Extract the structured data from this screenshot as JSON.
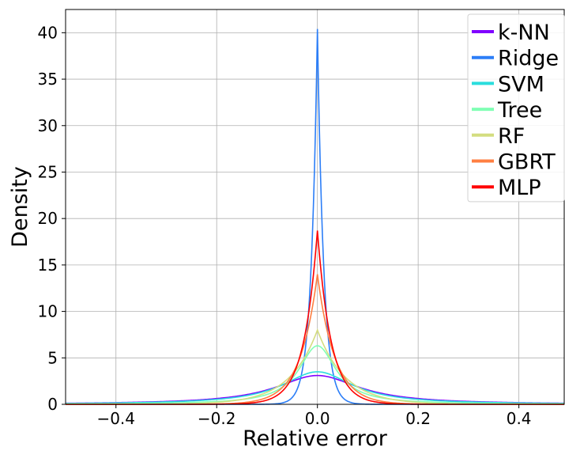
{
  "chart_data": {
    "type": "line",
    "xlabel": "Relative error",
    "ylabel": "Density",
    "xlim": [
      -0.5,
      0.49
    ],
    "ylim": [
      0,
      42.5
    ],
    "xticks": [
      -0.4,
      -0.2,
      0.0,
      0.2,
      0.4
    ],
    "xtick_labels": [
      "−0.4",
      "−0.2",
      "0.0",
      "0.2",
      "0.4"
    ],
    "yticks": [
      0,
      5,
      10,
      15,
      20,
      25,
      30,
      35,
      40
    ],
    "ytick_labels": [
      "0",
      "5",
      "10",
      "15",
      "20",
      "25",
      "30",
      "35",
      "40"
    ],
    "grid": true,
    "legend_position": "top-right",
    "series": [
      {
        "name": "k-NN",
        "color": "#8000ff",
        "peak": 3.1,
        "kind": "cauchy",
        "scale": 0.1
      },
      {
        "name": "Ridge",
        "color": "#2c7ef7",
        "peak": 40.4,
        "kind": "laplace",
        "scale": 0.0125
      },
      {
        "name": "SVM",
        "color": "#2adddd",
        "peak": 3.5,
        "kind": "cauchy",
        "scale": 0.085
      },
      {
        "name": "Tree",
        "color": "#80ffb4",
        "peak": 6.3,
        "kind": "cauchy",
        "scale": 0.045
      },
      {
        "name": "RF",
        "color": "#d4dd80",
        "peak": 8.0,
        "kind": "laplace",
        "scale": 0.055
      },
      {
        "name": "GBRT",
        "color": "#ff7f41",
        "peak": 14.0,
        "kind": "laplace",
        "scale": 0.034
      },
      {
        "name": "MLP",
        "color": "#ff0000",
        "peak": 18.7,
        "kind": "laplace",
        "scale": 0.027
      }
    ]
  }
}
